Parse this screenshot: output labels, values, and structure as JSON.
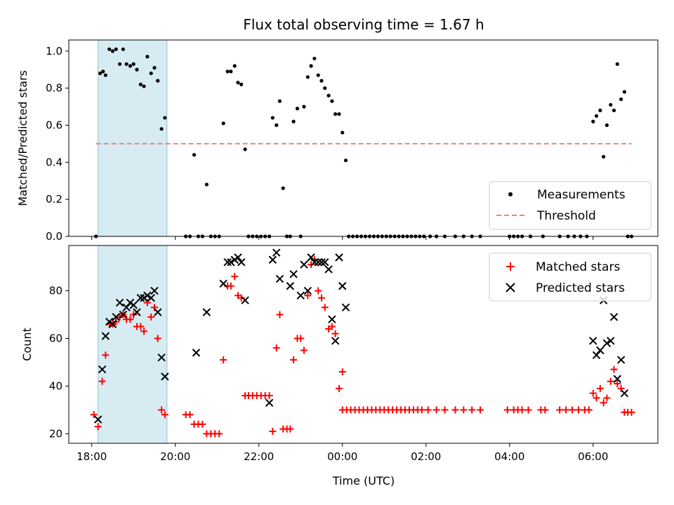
{
  "chart_data": {
    "type": "scatter",
    "title": "Flux total observing time = 1.67 h",
    "xlabel": "Time (UTC)",
    "xlim_hours": [
      17.45,
      31.55
    ],
    "xticks": [
      {
        "h": 18,
        "label": "18:00"
      },
      {
        "h": 20,
        "label": "20:00"
      },
      {
        "h": 22,
        "label": "22:00"
      },
      {
        "h": 24,
        "label": "00:00"
      },
      {
        "h": 26,
        "label": "02:00"
      },
      {
        "h": 28,
        "label": "04:00"
      },
      {
        "h": 30,
        "label": "06:00"
      }
    ],
    "highlight_span_hours": [
      18.15,
      19.8
    ],
    "highlight_color": "#add8e6",
    "top": {
      "ylabel": "Matched/Predicted stars",
      "ylim": [
        0,
        1.06
      ],
      "yticks": [
        "0.0",
        "0.2",
        "0.4",
        "0.6",
        "0.8",
        "1.0"
      ],
      "threshold": 0.5,
      "threshold_color": "#f08080",
      "legend": [
        "Measurements",
        "Threshold"
      ],
      "measurements": [
        [
          18.1,
          0
        ],
        [
          18.2,
          0.88
        ],
        [
          18.27,
          0.89
        ],
        [
          18.33,
          0.87
        ],
        [
          18.42,
          1.01
        ],
        [
          18.5,
          1.0
        ],
        [
          18.58,
          1.01
        ],
        [
          18.67,
          0.93
        ],
        [
          18.75,
          1.01
        ],
        [
          18.83,
          0.93
        ],
        [
          18.92,
          0.92
        ],
        [
          19.0,
          0.93
        ],
        [
          19.08,
          0.9
        ],
        [
          19.17,
          0.82
        ],
        [
          19.25,
          0.81
        ],
        [
          19.33,
          0.97
        ],
        [
          19.42,
          0.88
        ],
        [
          19.5,
          0.91
        ],
        [
          19.58,
          0.84
        ],
        [
          19.67,
          0.58
        ],
        [
          19.75,
          0.64
        ],
        [
          20.25,
          0
        ],
        [
          20.35,
          0
        ],
        [
          20.45,
          0.44
        ],
        [
          20.55,
          0
        ],
        [
          20.65,
          0
        ],
        [
          20.75,
          0.28
        ],
        [
          20.85,
          0
        ],
        [
          20.95,
          0
        ],
        [
          21.05,
          0
        ],
        [
          21.15,
          0.61
        ],
        [
          21.25,
          0.89
        ],
        [
          21.33,
          0.89
        ],
        [
          21.42,
          0.92
        ],
        [
          21.5,
          0.83
        ],
        [
          21.58,
          0.82
        ],
        [
          21.67,
          0.47
        ],
        [
          21.75,
          0
        ],
        [
          21.85,
          0
        ],
        [
          21.95,
          0
        ],
        [
          22.05,
          0
        ],
        [
          22.15,
          0
        ],
        [
          22.25,
          0
        ],
        [
          22.33,
          0.64
        ],
        [
          22.42,
          0.6
        ],
        [
          22.5,
          0.73
        ],
        [
          22.58,
          0.26
        ],
        [
          22.67,
          0
        ],
        [
          22.75,
          0
        ],
        [
          22.83,
          0.62
        ],
        [
          22.92,
          0.69
        ],
        [
          23.0,
          0
        ],
        [
          23.08,
          0.7
        ],
        [
          23.17,
          0.86
        ],
        [
          23.25,
          0.92
        ],
        [
          23.33,
          0.96
        ],
        [
          23.42,
          0.87
        ],
        [
          23.5,
          0.84
        ],
        [
          23.58,
          0.8
        ],
        [
          23.67,
          0.76
        ],
        [
          23.75,
          0.73
        ],
        [
          23.83,
          0.66
        ],
        [
          23.92,
          0.66
        ],
        [
          24.0,
          0.56
        ],
        [
          24.08,
          0.41
        ],
        [
          24.15,
          0
        ],
        [
          24.25,
          0
        ],
        [
          24.35,
          0
        ],
        [
          24.45,
          0
        ],
        [
          24.55,
          0
        ],
        [
          24.65,
          0
        ],
        [
          24.75,
          0
        ],
        [
          24.85,
          0
        ],
        [
          24.95,
          0
        ],
        [
          25.05,
          0
        ],
        [
          25.15,
          0
        ],
        [
          25.25,
          0
        ],
        [
          25.35,
          0
        ],
        [
          25.45,
          0
        ],
        [
          25.55,
          0
        ],
        [
          25.65,
          0
        ],
        [
          25.75,
          0
        ],
        [
          25.85,
          0
        ],
        [
          25.95,
          0
        ],
        [
          26.1,
          0
        ],
        [
          26.25,
          0
        ],
        [
          26.45,
          0
        ],
        [
          26.7,
          0
        ],
        [
          26.9,
          0
        ],
        [
          27.1,
          0
        ],
        [
          27.3,
          0
        ],
        [
          28.0,
          0
        ],
        [
          28.1,
          0
        ],
        [
          28.2,
          0
        ],
        [
          28.3,
          0
        ],
        [
          28.5,
          0
        ],
        [
          28.8,
          0
        ],
        [
          29.2,
          0
        ],
        [
          29.4,
          0
        ],
        [
          29.55,
          0
        ],
        [
          29.7,
          0
        ],
        [
          29.85,
          0
        ],
        [
          30.0,
          0.62
        ],
        [
          30.08,
          0.65
        ],
        [
          30.17,
          0.68
        ],
        [
          30.25,
          0.43
        ],
        [
          30.33,
          0.6
        ],
        [
          30.42,
          0.71
        ],
        [
          30.5,
          0.68
        ],
        [
          30.58,
          0.93
        ],
        [
          30.67,
          0.74
        ],
        [
          30.75,
          0.78
        ],
        [
          30.83,
          0
        ],
        [
          30.92,
          0
        ]
      ]
    },
    "bottom": {
      "ylabel": "Count",
      "ylim": [
        16,
        99
      ],
      "yticks": [
        "20",
        "40",
        "60",
        "80"
      ],
      "legend": [
        "Matched stars",
        "Predicted stars"
      ],
      "matched_color": "#ff0000",
      "predicted_color": "#000000",
      "matched": [
        [
          18.05,
          28
        ],
        [
          18.15,
          23
        ],
        [
          18.25,
          42
        ],
        [
          18.33,
          53
        ],
        [
          18.42,
          66
        ],
        [
          18.5,
          66
        ],
        [
          18.58,
          67
        ],
        [
          18.67,
          69
        ],
        [
          18.75,
          70
        ],
        [
          18.83,
          68
        ],
        [
          18.92,
          68
        ],
        [
          19.0,
          70
        ],
        [
          19.08,
          65
        ],
        [
          19.17,
          65
        ],
        [
          19.25,
          63
        ],
        [
          19.33,
          75
        ],
        [
          19.42,
          69
        ],
        [
          19.5,
          73
        ],
        [
          19.58,
          60
        ],
        [
          19.67,
          30
        ],
        [
          19.75,
          28
        ],
        [
          20.25,
          28
        ],
        [
          20.35,
          28
        ],
        [
          20.45,
          24
        ],
        [
          20.55,
          24
        ],
        [
          20.65,
          24
        ],
        [
          20.75,
          20
        ],
        [
          20.85,
          20
        ],
        [
          20.95,
          20
        ],
        [
          21.05,
          20
        ],
        [
          21.15,
          51
        ],
        [
          21.25,
          82
        ],
        [
          21.33,
          82
        ],
        [
          21.42,
          86
        ],
        [
          21.5,
          78
        ],
        [
          21.58,
          77
        ],
        [
          21.67,
          36
        ],
        [
          21.75,
          36
        ],
        [
          21.85,
          36
        ],
        [
          21.95,
          36
        ],
        [
          22.05,
          36
        ],
        [
          22.15,
          36
        ],
        [
          22.25,
          36
        ],
        [
          22.33,
          21
        ],
        [
          22.42,
          56
        ],
        [
          22.5,
          70
        ],
        [
          22.58,
          22
        ],
        [
          22.67,
          22
        ],
        [
          22.75,
          22
        ],
        [
          22.83,
          51
        ],
        [
          22.92,
          60
        ],
        [
          23.0,
          60
        ],
        [
          23.08,
          55
        ],
        [
          23.17,
          78
        ],
        [
          23.25,
          91
        ],
        [
          23.33,
          93
        ],
        [
          23.42,
          80
        ],
        [
          23.5,
          77
        ],
        [
          23.58,
          73
        ],
        [
          23.67,
          64
        ],
        [
          23.75,
          65
        ],
        [
          23.83,
          62
        ],
        [
          23.92,
          39
        ],
        [
          24.0,
          46
        ],
        [
          24.0,
          30
        ],
        [
          24.1,
          30
        ],
        [
          24.2,
          30
        ],
        [
          24.3,
          30
        ],
        [
          24.4,
          30
        ],
        [
          24.5,
          30
        ],
        [
          24.6,
          30
        ],
        [
          24.7,
          30
        ],
        [
          24.8,
          30
        ],
        [
          24.9,
          30
        ],
        [
          25.0,
          30
        ],
        [
          25.1,
          30
        ],
        [
          25.2,
          30
        ],
        [
          25.3,
          30
        ],
        [
          25.4,
          30
        ],
        [
          25.5,
          30
        ],
        [
          25.6,
          30
        ],
        [
          25.7,
          30
        ],
        [
          25.8,
          30
        ],
        [
          25.9,
          30
        ],
        [
          26.05,
          30
        ],
        [
          26.25,
          30
        ],
        [
          26.45,
          30
        ],
        [
          26.7,
          30
        ],
        [
          26.9,
          30
        ],
        [
          27.1,
          30
        ],
        [
          27.3,
          30
        ],
        [
          27.95,
          30
        ],
        [
          28.1,
          30
        ],
        [
          28.2,
          30
        ],
        [
          28.3,
          30
        ],
        [
          28.45,
          30
        ],
        [
          28.75,
          30
        ],
        [
          28.85,
          30
        ],
        [
          29.2,
          30
        ],
        [
          29.35,
          30
        ],
        [
          29.5,
          30
        ],
        [
          29.65,
          30
        ],
        [
          29.8,
          30
        ],
        [
          29.9,
          30
        ],
        [
          30.0,
          37
        ],
        [
          30.08,
          35
        ],
        [
          30.17,
          39
        ],
        [
          30.25,
          33
        ],
        [
          30.33,
          35
        ],
        [
          30.42,
          42
        ],
        [
          30.5,
          47
        ],
        [
          30.58,
          41
        ],
        [
          30.67,
          39
        ],
        [
          30.75,
          29
        ],
        [
          30.83,
          29
        ],
        [
          30.92,
          29
        ]
      ],
      "predicted": [
        [
          18.15,
          26
        ],
        [
          18.25,
          47
        ],
        [
          18.33,
          61
        ],
        [
          18.42,
          67
        ],
        [
          18.5,
          66
        ],
        [
          18.58,
          69
        ],
        [
          18.67,
          75
        ],
        [
          18.75,
          70
        ],
        [
          18.83,
          73
        ],
        [
          18.92,
          75
        ],
        [
          19.0,
          74
        ],
        [
          19.08,
          71
        ],
        [
          19.17,
          77
        ],
        [
          19.25,
          77
        ],
        [
          19.33,
          78
        ],
        [
          19.42,
          77
        ],
        [
          19.5,
          80
        ],
        [
          19.58,
          71
        ],
        [
          19.67,
          52
        ],
        [
          19.75,
          44
        ],
        [
          20.5,
          54
        ],
        [
          20.75,
          71
        ],
        [
          21.15,
          83
        ],
        [
          21.25,
          92
        ],
        [
          21.33,
          92
        ],
        [
          21.42,
          93
        ],
        [
          21.5,
          94
        ],
        [
          21.58,
          92
        ],
        [
          21.67,
          76
        ],
        [
          22.25,
          33
        ],
        [
          22.33,
          93
        ],
        [
          22.42,
          96
        ],
        [
          22.5,
          85
        ],
        [
          22.75,
          82
        ],
        [
          22.83,
          87
        ],
        [
          23.0,
          78
        ],
        [
          23.08,
          91
        ],
        [
          23.17,
          80
        ],
        [
          23.25,
          94
        ],
        [
          23.33,
          92
        ],
        [
          23.42,
          92
        ],
        [
          23.5,
          92
        ],
        [
          23.58,
          92
        ],
        [
          23.67,
          89
        ],
        [
          23.75,
          68
        ],
        [
          23.83,
          59
        ],
        [
          23.92,
          94
        ],
        [
          24.0,
          82
        ],
        [
          24.08,
          73
        ],
        [
          30.0,
          59
        ],
        [
          30.08,
          53
        ],
        [
          30.17,
          55
        ],
        [
          30.25,
          76
        ],
        [
          30.33,
          58
        ],
        [
          30.42,
          59
        ],
        [
          30.5,
          69
        ],
        [
          30.58,
          43
        ],
        [
          30.67,
          51
        ],
        [
          30.75,
          37
        ]
      ]
    }
  }
}
